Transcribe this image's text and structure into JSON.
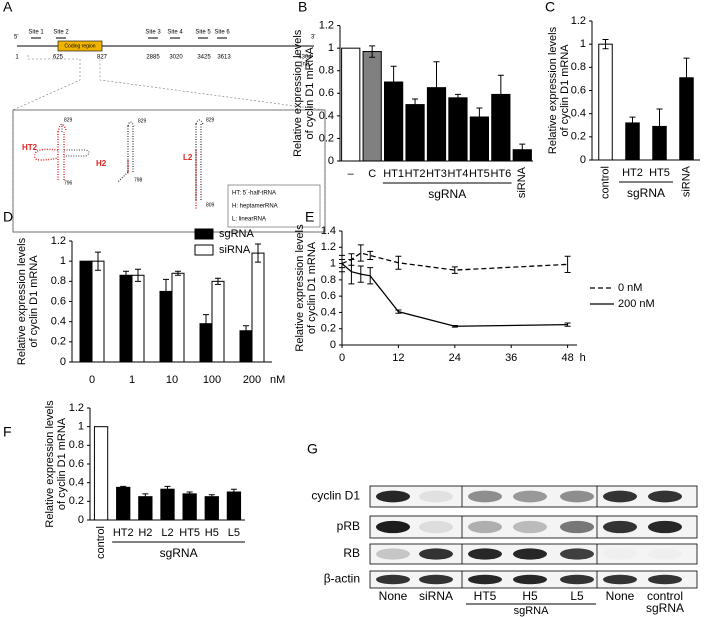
{
  "diagram": {
    "panel": "A",
    "five_prime": "5'",
    "three_prime": "3'",
    "sites": [
      "Site 1",
      "Site 2",
      "Site 3",
      "Site 4",
      "Site 5",
      "Site 6"
    ],
    "coding_region": "Coding region",
    "positions": [
      "1",
      "625",
      "827",
      "2885",
      "3020",
      "3425",
      "3613",
      "4304"
    ],
    "unit": "(nt)",
    "structures": [
      {
        "label": "HT2",
        "top": "829",
        "bottom": "796"
      },
      {
        "label": "H2",
        "top": "829",
        "bottom": "798"
      },
      {
        "label": "L2",
        "top": "829",
        "bottom": "809"
      }
    ],
    "legend": [
      "HT: 5´-half-tRNA",
      "H: heptamerRNA",
      "L: linearRNA"
    ]
  },
  "chart_data": [
    {
      "panel": "B",
      "type": "bar",
      "y_label": [
        "Relative expression levels",
        "of cyclin D1 mRNA"
      ],
      "categories": [
        "–",
        "C",
        "HT1",
        "HT2",
        "HT3",
        "HT4",
        "HT5",
        "HT6",
        "siRNA"
      ],
      "values": [
        1.0,
        0.97,
        0.7,
        0.5,
        0.65,
        0.56,
        0.39,
        0.59,
        0.1
      ],
      "errors": [
        0,
        0.05,
        0.14,
        0.05,
        0.23,
        0.03,
        0.08,
        0.17,
        0.05
      ],
      "colors": [
        "#ffffff",
        "#808080",
        "#000000",
        "#000000",
        "#000000",
        "#000000",
        "#000000",
        "#000000",
        "#000000"
      ],
      "group_label": "sgRNA",
      "ylim": [
        0,
        1.2
      ],
      "yticks": [
        0,
        0.2,
        0.4,
        0.6,
        0.8,
        1,
        1.2
      ]
    },
    {
      "panel": "C",
      "type": "bar",
      "y_label": [
        "Relative expression levels",
        "of cyclin D1 mRNA"
      ],
      "categories": [
        "control",
        "HT2",
        "HT5",
        "siRNA"
      ],
      "values": [
        1.0,
        0.32,
        0.29,
        0.71
      ],
      "errors": [
        0.04,
        0.05,
        0.15,
        0.17
      ],
      "colors": [
        "#ffffff",
        "#000000",
        "#000000",
        "#000000"
      ],
      "group_label": "sgRNA",
      "ylim": [
        0,
        1.2
      ],
      "yticks": [
        0,
        0.2,
        0.4,
        0.6,
        0.8,
        1,
        1.2
      ]
    },
    {
      "panel": "D",
      "type": "grouped_bar",
      "y_label": [
        "Relative expression levels",
        "of cyclin D1 mRNA"
      ],
      "categories": [
        "0",
        "1",
        "10",
        "100",
        "200"
      ],
      "x_unit": "nM",
      "series": [
        {
          "name": "sgRNA",
          "color": "#000000",
          "values": [
            1.0,
            0.86,
            0.7,
            0.38,
            0.31
          ],
          "errors": [
            0,
            0.04,
            0.12,
            0.09,
            0.05
          ]
        },
        {
          "name": "siRNA",
          "color": "#ffffff",
          "values": [
            1.0,
            0.86,
            0.88,
            0.8,
            1.08
          ],
          "errors": [
            0.09,
            0.06,
            0.02,
            0.03,
            0.09
          ]
        }
      ],
      "ylim": [
        0,
        1.2
      ],
      "yticks": [
        0,
        0.2,
        0.4,
        0.6,
        0.8,
        1,
        1.2
      ],
      "legend": "top-right"
    },
    {
      "panel": "E",
      "type": "line",
      "y_label": [
        "Relative expression levels",
        "of cyclin D1 mRNA"
      ],
      "x": [
        0,
        2,
        4,
        6,
        12,
        24,
        48
      ],
      "x_unit": "h",
      "series": [
        {
          "name": "0 nM",
          "color": "#000000",
          "line_style": "dashed",
          "values": [
            1.0,
            1.05,
            1.13,
            1.1,
            1.01,
            0.92,
            0.99
          ],
          "errors": [
            0.05,
            0.07,
            0.1,
            0.05,
            0.08,
            0.04,
            0.1
          ]
        },
        {
          "name": "200 nM",
          "color": "#000000",
          "line_style": "solid",
          "values": [
            1.0,
            0.9,
            0.87,
            0.85,
            0.41,
            0.23,
            0.25
          ],
          "errors": [
            0.1,
            0.15,
            0.1,
            0.1,
            0.02,
            0.01,
            0.02
          ]
        }
      ],
      "xlim": [
        0,
        50
      ],
      "xticks": [
        0,
        12,
        24,
        36,
        48
      ],
      "ylim": [
        0,
        1.4
      ],
      "yticks": [
        0,
        0.2,
        0.4,
        0.6,
        0.8,
        1,
        1.2,
        1.4
      ],
      "legend": "right"
    },
    {
      "panel": "F",
      "type": "bar",
      "y_label": [
        "Relative expression levels",
        "of cyclin D1 mRNA"
      ],
      "categories": [
        "control",
        "HT2",
        "H2",
        "L2",
        "HT5",
        "H5",
        "L5"
      ],
      "values": [
        1.0,
        0.35,
        0.25,
        0.33,
        0.28,
        0.25,
        0.3
      ],
      "errors": [
        0,
        0.01,
        0.03,
        0.03,
        0.02,
        0.02,
        0.03
      ],
      "colors": [
        "#ffffff",
        "#000000",
        "#000000",
        "#000000",
        "#000000",
        "#000000",
        "#000000"
      ],
      "group_label": "sgRNA",
      "ylim": [
        0,
        1.2
      ],
      "yticks": [
        0,
        0.2,
        0.4,
        0.6,
        0.8,
        1,
        1.2
      ]
    }
  ],
  "blot": {
    "panel": "G",
    "rows": [
      "cyclin D1",
      "pRB",
      "RB",
      "β-actin"
    ],
    "lanes": [
      "None",
      "siRNA",
      "HT5",
      "H5",
      "L5",
      "None",
      "control"
    ],
    "group_labels": [
      "sgRNA",
      "sgRNA"
    ]
  }
}
